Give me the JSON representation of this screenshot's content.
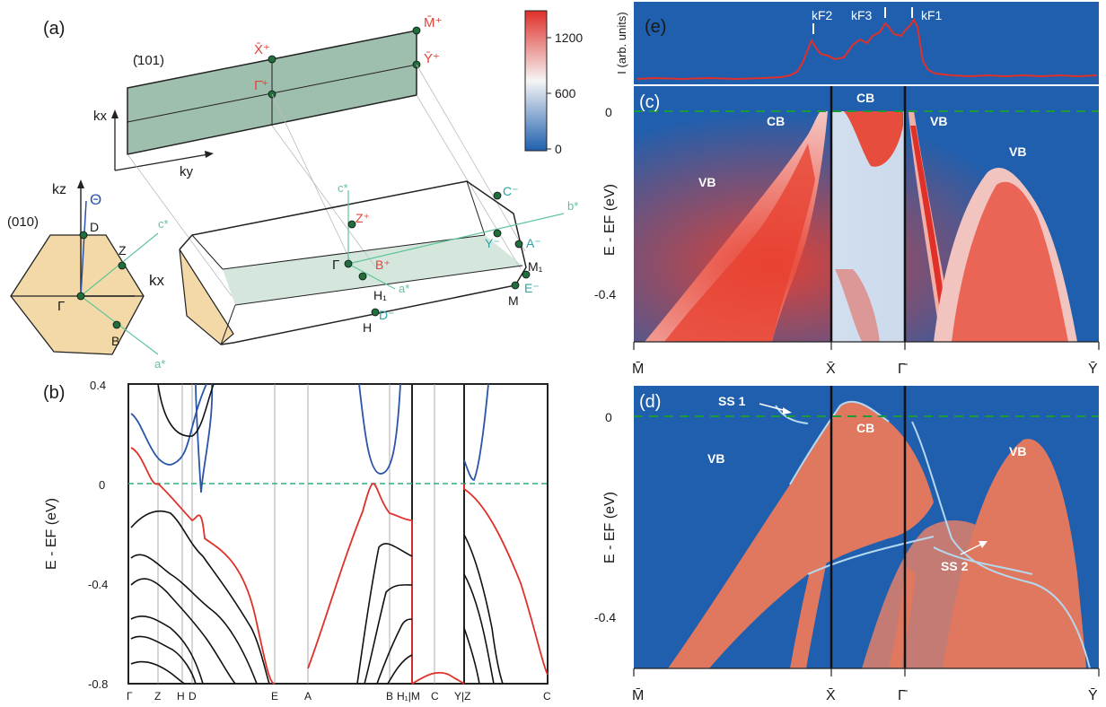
{
  "panel_labels": {
    "a": "(a)",
    "b": "(b)",
    "c": "(c)",
    "d": "(d)",
    "e": "(e)"
  },
  "panel_a": {
    "surface_label": "(̄101)",
    "surface_points": [
      "M̄⁺",
      "X̄⁺",
      "Ȳ⁺",
      "Γ̄⁺"
    ],
    "surface_axes": [
      "kx",
      "ky"
    ],
    "bz_010_label": "(010)",
    "bz_010_points": [
      "kz",
      "Θ",
      "D",
      "Z",
      "kx",
      "Γ",
      "B",
      "c*",
      "a*"
    ],
    "bz_3d_points": [
      "c*",
      "b*",
      "C⁻",
      "Z⁺",
      "Y⁻",
      "A⁻",
      "Γ",
      "B⁺",
      "M₁",
      "E⁻",
      "H₁",
      "a*",
      "D⁻",
      "M",
      "H"
    ],
    "colorbar_ticks": [
      "1200",
      "600",
      "0"
    ],
    "colorbar_colors": {
      "low": "#1f5fae",
      "mid": "#f5f5f5",
      "high": "#e0302a"
    }
  },
  "panel_b": {
    "ylabel": "E - EF (eV)",
    "yticks": [
      "0.4",
      "0",
      "-0.4",
      "-0.8"
    ],
    "xticks": [
      "Γ",
      "Z",
      "H",
      "D",
      "E",
      "A",
      "B",
      "H₁|M",
      "C",
      "Y|Z",
      "C"
    ],
    "colors": {
      "conduction": "#2a55a8",
      "valence_top": "#e0302a",
      "other": "#111111",
      "fermi": "#2eb37a"
    }
  },
  "panel_c": {
    "ylabel": "E - EF (eV)",
    "yticks": [
      "0",
      "-0.4"
    ],
    "labels": [
      "CB",
      "CB",
      "VB",
      "VB",
      "VB"
    ],
    "xticks": [
      "M̄",
      "X̄",
      "Γ̄",
      "Ȳ"
    ]
  },
  "panel_d": {
    "ylabel": "E - EF (eV)",
    "yticks": [
      "0",
      "-0.4"
    ],
    "labels": [
      "SS 1",
      "CB",
      "VB",
      "VB",
      "SS 2"
    ],
    "xticks": [
      "M̄",
      "X̄",
      "Γ̄",
      "Ȳ"
    ]
  },
  "panel_e": {
    "ylabel": "I (arb. units)",
    "kf_labels": [
      "kF2",
      "kF3",
      "kF1"
    ]
  }
}
